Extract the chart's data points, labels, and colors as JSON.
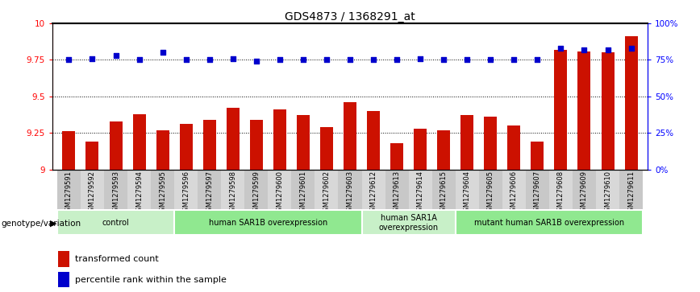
{
  "title": "GDS4873 / 1368291_at",
  "samples": [
    "GSM1279591",
    "GSM1279592",
    "GSM1279593",
    "GSM1279594",
    "GSM1279595",
    "GSM1279596",
    "GSM1279597",
    "GSM1279598",
    "GSM1279599",
    "GSM1279600",
    "GSM1279601",
    "GSM1279602",
    "GSM1279603",
    "GSM1279612",
    "GSM1279613",
    "GSM1279614",
    "GSM1279615",
    "GSM1279604",
    "GSM1279605",
    "GSM1279606",
    "GSM1279607",
    "GSM1279608",
    "GSM1279609",
    "GSM1279610",
    "GSM1279611"
  ],
  "red_values": [
    9.26,
    9.19,
    9.33,
    9.38,
    9.27,
    9.31,
    9.34,
    9.42,
    9.34,
    9.41,
    9.37,
    9.29,
    9.46,
    9.4,
    9.18,
    9.28,
    9.27,
    9.37,
    9.36,
    9.3,
    9.19,
    9.82,
    9.81,
    9.8,
    9.91
  ],
  "blue_values": [
    75,
    76,
    78,
    75,
    80,
    75,
    75,
    76,
    74,
    75,
    75,
    75,
    75,
    75,
    75,
    76,
    75,
    75,
    75,
    75,
    75,
    83,
    82,
    82,
    83
  ],
  "groups": [
    {
      "label": "control",
      "start": 0,
      "end": 5,
      "color": "#c8f0c8"
    },
    {
      "label": "human SAR1B overexpression",
      "start": 5,
      "end": 13,
      "color": "#90e890"
    },
    {
      "label": "human SAR1A\noverexpression",
      "start": 13,
      "end": 17,
      "color": "#c8f0c8"
    },
    {
      "label": "mutant human SAR1B overexpression",
      "start": 17,
      "end": 25,
      "color": "#90e890"
    }
  ],
  "ylim_left": [
    9.0,
    10.0
  ],
  "ylim_right": [
    0,
    100
  ],
  "yticks_left": [
    9.0,
    9.25,
    9.5,
    9.75,
    10.0
  ],
  "yticks_right": [
    0,
    25,
    50,
    75,
    100
  ],
  "bar_color": "#cc1100",
  "dot_color": "#0000cc",
  "title_fontsize": 10,
  "genotype_label": "genotype/variation",
  "legend_red": "transformed count",
  "legend_blue": "percentile rank within the sample",
  "tick_bg_even": "#c8c8c8",
  "tick_bg_odd": "#d8d8d8"
}
